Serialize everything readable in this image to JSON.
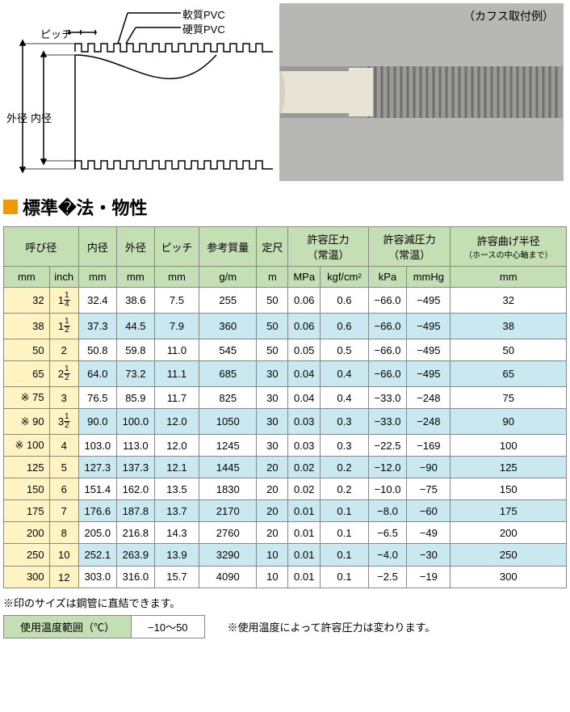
{
  "diagram": {
    "pitch_label": "ピッチ",
    "soft_pvc_label": "軟質PVC",
    "hard_pvc_label": "硬質PVC",
    "outer_label": "外径",
    "inner_label": "内径"
  },
  "photo": {
    "caption": "（カフス取付例）",
    "bg_color": "#b7b8b6",
    "cuff_color": "#e8e4d5",
    "hose_gray": "#9a9a98"
  },
  "section": {
    "title": "標準�法・物性",
    "marker_color": "#f39800"
  },
  "table": {
    "colors": {
      "header_green": "#c4dfb4",
      "yellow": "#fff3c2",
      "blue": "#c9e8f0",
      "white": "#ffffff",
      "border": "#888888"
    },
    "headers": {
      "nominal": "呼び径",
      "mm": "mm",
      "inch": "inch",
      "inner": "内径",
      "outer": "外径",
      "pitch": "ピッチ",
      "mass": "参考質量",
      "mass_unit": "g/m",
      "length": "定尺",
      "length_unit": "m",
      "pressure": "許容圧力",
      "room_temp": "（常温）",
      "mpa": "MPa",
      "kgfcm2": "kgf/cm²",
      "neg_pressure": "許容減圧力",
      "kpa": "kPa",
      "mmhg": "mmHg",
      "bend": "許容曲げ半径",
      "bend_note": "（ホースの中心軸まで）"
    },
    "rows": [
      {
        "mark": "",
        "mm": "32",
        "inch_w": "1",
        "inch_n": "1",
        "inch_d": "4",
        "inner": "32.4",
        "outer": "38.6",
        "pitch": "7.5",
        "mass": "255",
        "len": "50",
        "mpa": "0.06",
        "kgf": "0.6",
        "kpa": "−66.0",
        "mmhg": "−495",
        "bend": "32",
        "shade": "white"
      },
      {
        "mark": "",
        "mm": "38",
        "inch_w": "1",
        "inch_n": "1",
        "inch_d": "2",
        "inner": "37.3",
        "outer": "44.5",
        "pitch": "7.9",
        "mass": "360",
        "len": "50",
        "mpa": "0.06",
        "kgf": "0.6",
        "kpa": "−66.0",
        "mmhg": "−495",
        "bend": "38",
        "shade": "blue"
      },
      {
        "mark": "",
        "mm": "50",
        "inch_w": "2",
        "inch_n": "",
        "inch_d": "",
        "inner": "50.8",
        "outer": "59.8",
        "pitch": "11.0",
        "mass": "545",
        "len": "50",
        "mpa": "0.05",
        "kgf": "0.5",
        "kpa": "−66.0",
        "mmhg": "−495",
        "bend": "50",
        "shade": "white"
      },
      {
        "mark": "",
        "mm": "65",
        "inch_w": "2",
        "inch_n": "1",
        "inch_d": "2",
        "inner": "64.0",
        "outer": "73.2",
        "pitch": "11.1",
        "mass": "685",
        "len": "30",
        "mpa": "0.04",
        "kgf": "0.4",
        "kpa": "−66.0",
        "mmhg": "−495",
        "bend": "65",
        "shade": "blue"
      },
      {
        "mark": "※",
        "mm": "75",
        "inch_w": "3",
        "inch_n": "",
        "inch_d": "",
        "inner": "76.5",
        "outer": "85.9",
        "pitch": "11.7",
        "mass": "825",
        "len": "30",
        "mpa": "0.04",
        "kgf": "0.4",
        "kpa": "−33.0",
        "mmhg": "−248",
        "bend": "75",
        "shade": "white"
      },
      {
        "mark": "※",
        "mm": "90",
        "inch_w": "3",
        "inch_n": "1",
        "inch_d": "2",
        "inner": "90.0",
        "outer": "100.0",
        "pitch": "12.0",
        "mass": "1050",
        "len": "30",
        "mpa": "0.03",
        "kgf": "0.3",
        "kpa": "−33.0",
        "mmhg": "−248",
        "bend": "90",
        "shade": "blue"
      },
      {
        "mark": "※",
        "mm": "100",
        "inch_w": "4",
        "inch_n": "",
        "inch_d": "",
        "inner": "103.0",
        "outer": "113.0",
        "pitch": "12.0",
        "mass": "1245",
        "len": "30",
        "mpa": "0.03",
        "kgf": "0.3",
        "kpa": "−22.5",
        "mmhg": "−169",
        "bend": "100",
        "shade": "white"
      },
      {
        "mark": "",
        "mm": "125",
        "inch_w": "5",
        "inch_n": "",
        "inch_d": "",
        "inner": "127.3",
        "outer": "137.3",
        "pitch": "12.1",
        "mass": "1445",
        "len": "20",
        "mpa": "0.02",
        "kgf": "0.2",
        "kpa": "−12.0",
        "mmhg": "−90",
        "bend": "125",
        "shade": "blue"
      },
      {
        "mark": "",
        "mm": "150",
        "inch_w": "6",
        "inch_n": "",
        "inch_d": "",
        "inner": "151.4",
        "outer": "162.0",
        "pitch": "13.5",
        "mass": "1830",
        "len": "20",
        "mpa": "0.02",
        "kgf": "0.2",
        "kpa": "−10.0",
        "mmhg": "−75",
        "bend": "150",
        "shade": "white"
      },
      {
        "mark": "",
        "mm": "175",
        "inch_w": "7",
        "inch_n": "",
        "inch_d": "",
        "inner": "176.6",
        "outer": "187.8",
        "pitch": "13.7",
        "mass": "2170",
        "len": "20",
        "mpa": "0.01",
        "kgf": "0.1",
        "kpa": "−8.0",
        "mmhg": "−60",
        "bend": "175",
        "shade": "blue"
      },
      {
        "mark": "",
        "mm": "200",
        "inch_w": "8",
        "inch_n": "",
        "inch_d": "",
        "inner": "205.0",
        "outer": "216.8",
        "pitch": "14.3",
        "mass": "2760",
        "len": "20",
        "mpa": "0.01",
        "kgf": "0.1",
        "kpa": "−6.5",
        "mmhg": "−49",
        "bend": "200",
        "shade": "white"
      },
      {
        "mark": "",
        "mm": "250",
        "inch_w": "10",
        "inch_n": "",
        "inch_d": "",
        "inner": "252.1",
        "outer": "263.9",
        "pitch": "13.9",
        "mass": "3290",
        "len": "10",
        "mpa": "0.01",
        "kgf": "0.1",
        "kpa": "−4.0",
        "mmhg": "−30",
        "bend": "250",
        "shade": "blue"
      },
      {
        "mark": "",
        "mm": "300",
        "inch_w": "12",
        "inch_n": "",
        "inch_d": "",
        "inner": "303.0",
        "outer": "316.0",
        "pitch": "15.7",
        "mass": "4090",
        "len": "10",
        "mpa": "0.01",
        "kgf": "0.1",
        "kpa": "−2.5",
        "mmhg": "−19",
        "bend": "300",
        "shade": "white"
      }
    ]
  },
  "footnotes": {
    "note1": "※印のサイズは鋼管に直結できます。",
    "temp_label": "使用温度範囲（℃）",
    "temp_value": "−10〜50",
    "temp_note": "※使用温度によって許容圧力は変わります。"
  }
}
